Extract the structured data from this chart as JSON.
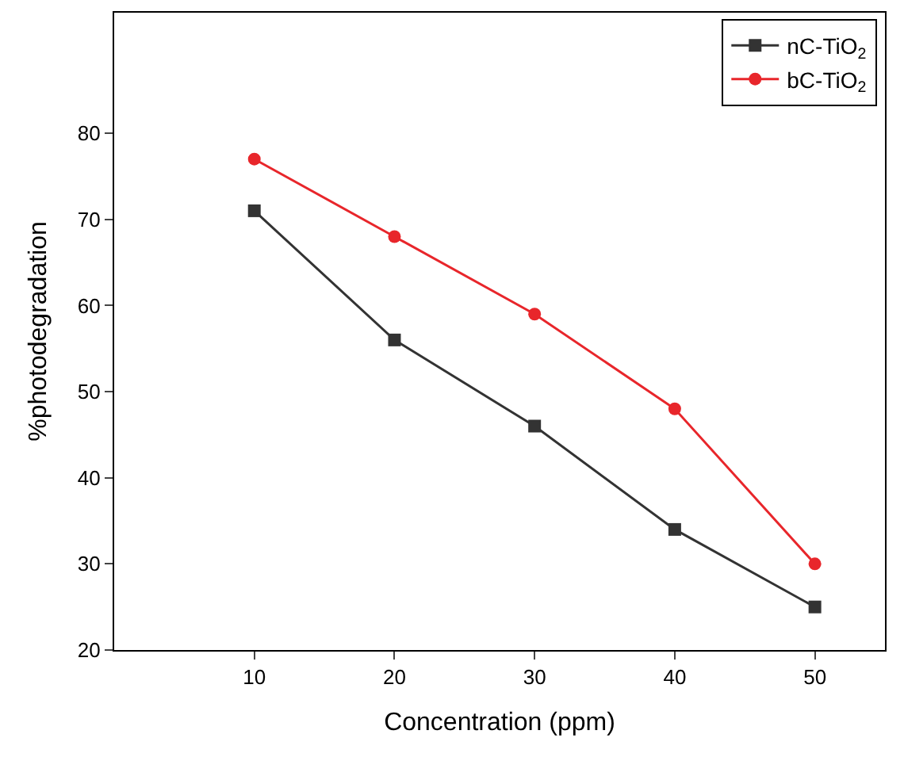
{
  "chart_data": {
    "type": "line",
    "xlabel": "Concentration (ppm)",
    "ylabel": "%photodegradation",
    "x": [
      10,
      20,
      30,
      40,
      50
    ],
    "series": [
      {
        "name": "nC-TiO$_{2}$",
        "color": "#333333",
        "marker": "square",
        "values": [
          71,
          56,
          46,
          34,
          25
        ]
      },
      {
        "name": "bC-TiO$_{2}$",
        "color": "#e8262b",
        "marker": "circle",
        "values": [
          77,
          68,
          59,
          48,
          30
        ]
      }
    ],
    "xlim": [
      0,
      55
    ],
    "xticks": [
      10,
      20,
      30,
      40,
      50
    ],
    "ylim": [
      20,
      94
    ],
    "yticks": [
      20,
      30,
      40,
      50,
      60,
      70,
      80
    ],
    "legend": "top right",
    "line_style": "solid"
  }
}
